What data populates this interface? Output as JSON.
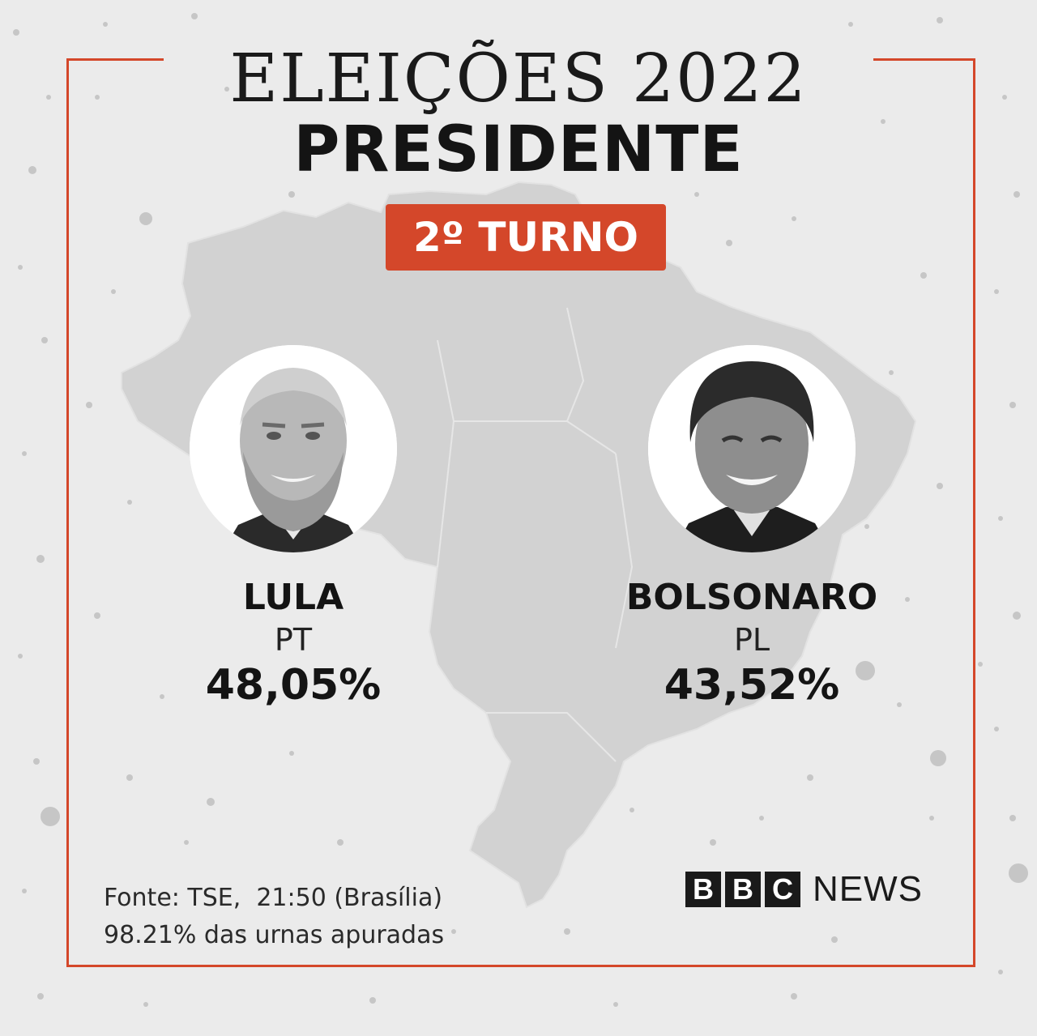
{
  "header": {
    "title": "ELEIÇÕES 2022",
    "subtitle": "PRESIDENTE",
    "round_badge": "2º TURNO"
  },
  "candidates": [
    {
      "name": "LULA",
      "party": "PT",
      "percent": "48,05%"
    },
    {
      "name": "BOLSONARO",
      "party": "PL",
      "percent": "43,52%"
    }
  ],
  "footer": {
    "source_line": "Fonte: TSE,  21:50 (Brasília)",
    "count_line": "98.21% das urnas apuradas"
  },
  "logo": {
    "blocks": [
      "B",
      "B",
      "C"
    ],
    "word": "NEWS"
  },
  "colors": {
    "accent": "#d4472a",
    "background": "#ebebeb",
    "map": "#d2d2d2",
    "text": "#141414"
  }
}
